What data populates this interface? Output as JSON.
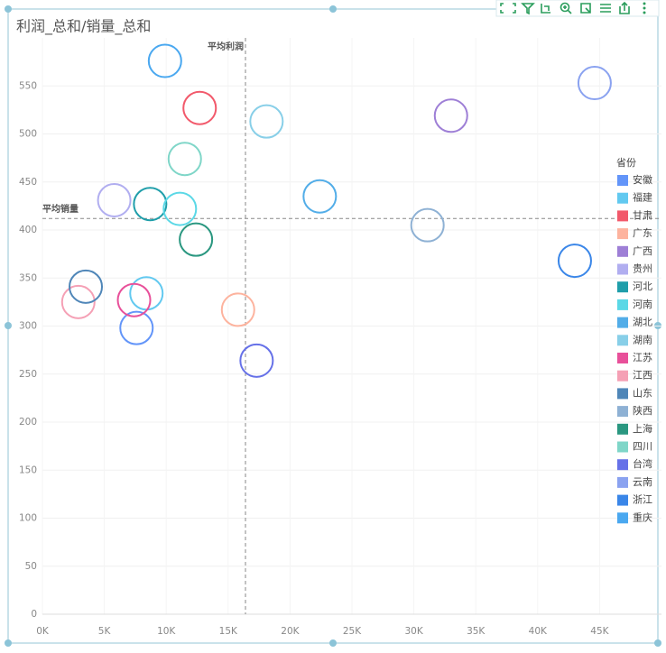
{
  "chart_data": {
    "type": "scatter",
    "title": "利润_总和/销量_总和",
    "xlim": [
      0,
      50000
    ],
    "ylim": [
      0,
      600
    ],
    "xticks": [
      {
        "value": 0,
        "label": "0K"
      },
      {
        "value": 5000,
        "label": "5K"
      },
      {
        "value": 10000,
        "label": "10K"
      },
      {
        "value": 15000,
        "label": "15K"
      },
      {
        "value": 20000,
        "label": "20K"
      },
      {
        "value": 25000,
        "label": "25K"
      },
      {
        "value": 30000,
        "label": "30K"
      },
      {
        "value": 35000,
        "label": "35K"
      },
      {
        "value": 40000,
        "label": "40K"
      },
      {
        "value": 45000,
        "label": "45K"
      }
    ],
    "yticks": [
      0,
      50,
      100,
      150,
      200,
      250,
      300,
      350,
      400,
      450,
      500,
      550
    ],
    "grid": true,
    "legend": "right",
    "legend_title": "省份",
    "reference_lines": [
      {
        "axis": "x",
        "value": 16400,
        "label": "平均利润"
      },
      {
        "axis": "y",
        "value": 412,
        "label": "平均销量"
      }
    ],
    "series": [
      {
        "name": "安徽",
        "color": "#6395f9",
        "x": [
          7600
        ],
        "values": [
          298
        ]
      },
      {
        "name": "福建",
        "color": "#62c9f0",
        "x": [
          8400
        ],
        "values": [
          334
        ]
      },
      {
        "name": "甘肃",
        "color": "#f2596b",
        "x": [
          12700
        ],
        "values": [
          527
        ]
      },
      {
        "name": "广东",
        "color": "#fdb39e",
        "x": [
          15800
        ],
        "values": [
          317
        ]
      },
      {
        "name": "广西",
        "color": "#9e7fd6",
        "x": [
          33000
        ],
        "values": [
          519
        ]
      },
      {
        "name": "贵州",
        "color": "#b1aef0",
        "x": [
          5800
        ],
        "values": [
          431
        ]
      },
      {
        "name": "河北",
        "color": "#1f9eaa",
        "x": [
          8700
        ],
        "values": [
          427
        ]
      },
      {
        "name": "河南",
        "color": "#5bd8e6",
        "x": [
          11100
        ],
        "values": [
          422
        ]
      },
      {
        "name": "湖北",
        "color": "#52ade8",
        "x": [
          22400
        ],
        "values": [
          435
        ]
      },
      {
        "name": "湖南",
        "color": "#88cfe8",
        "x": [
          18100
        ],
        "values": [
          513
        ]
      },
      {
        "name": "江苏",
        "color": "#e8509a",
        "x": [
          7400
        ],
        "values": [
          327
        ]
      },
      {
        "name": "江西",
        "color": "#f5a0b5",
        "x": [
          2900
        ],
        "values": [
          325
        ]
      },
      {
        "name": "山东",
        "color": "#4f86b8",
        "x": [
          3500
        ],
        "values": [
          341
        ]
      },
      {
        "name": "陕西",
        "color": "#8eb1d4",
        "x": [
          31100
        ],
        "values": [
          405
        ]
      },
      {
        "name": "上海",
        "color": "#2a9780",
        "x": [
          12400
        ],
        "values": [
          390
        ]
      },
      {
        "name": "四川",
        "color": "#7fd6c8",
        "x": [
          11500
        ],
        "values": [
          474
        ]
      },
      {
        "name": "台湾",
        "color": "#6671e8",
        "x": [
          17300
        ],
        "values": [
          264
        ]
      },
      {
        "name": "云南",
        "color": "#8aa2f0",
        "x": [
          44600
        ],
        "values": [
          553
        ]
      },
      {
        "name": "浙江",
        "color": "#3a86e8",
        "x": [
          43000
        ],
        "values": [
          368
        ]
      },
      {
        "name": "重庆",
        "color": "#4aa8f0",
        "x": [
          9900
        ],
        "values": [
          576
        ]
      }
    ]
  }
}
